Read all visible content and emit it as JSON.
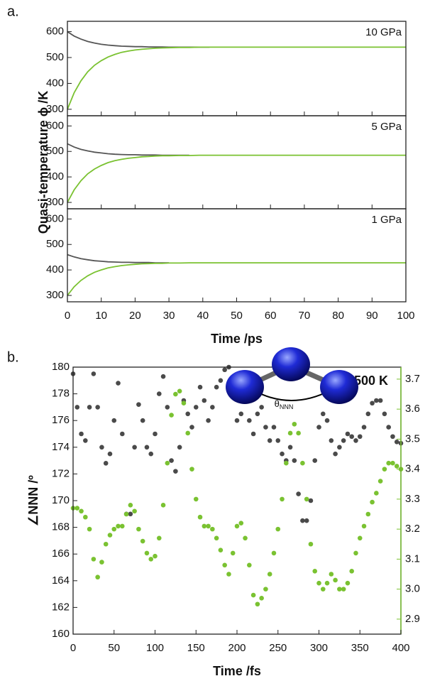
{
  "chart_data": [
    {
      "type": "line",
      "panel_label": "a.",
      "annotation": "10 GPa",
      "x": [
        0,
        2,
        4,
        6,
        8,
        10,
        12,
        14,
        16,
        18,
        20,
        22,
        24,
        26,
        28,
        30,
        33,
        36,
        39,
        42,
        50,
        60,
        70,
        80,
        90,
        100
      ],
      "series": [
        {
          "name": "gray",
          "color": "#555555",
          "values": [
            600,
            583,
            571,
            562,
            556,
            551,
            548,
            546,
            544,
            543,
            542,
            542,
            541,
            541,
            541,
            540,
            540,
            540,
            540,
            540,
            null,
            null,
            null,
            null,
            null,
            null
          ]
        },
        {
          "name": "green",
          "color": "#7ac231",
          "values": [
            300,
            364,
            410,
            445,
            470,
            488,
            502,
            512,
            520,
            525,
            529,
            532,
            534,
            536,
            537,
            538,
            539,
            539,
            540,
            540,
            540,
            540,
            540,
            540,
            540,
            540
          ]
        }
      ],
      "xlim": [
        0,
        100
      ],
      "xticks": [
        0,
        10,
        20,
        30,
        40,
        50,
        60,
        70,
        80,
        90,
        100
      ],
      "ylim": [
        275,
        640
      ],
      "yticks": [
        300,
        400,
        500,
        600
      ]
    },
    {
      "type": "line",
      "annotation": "5 GPa",
      "ylabel": "Quasi-temperature ϕ /K",
      "x": [
        0,
        2,
        4,
        6,
        8,
        10,
        12,
        14,
        16,
        18,
        20,
        22,
        24,
        26,
        28,
        30,
        33,
        36,
        39,
        42,
        50,
        60,
        70,
        80,
        90,
        100
      ],
      "series": [
        {
          "name": "gray",
          "color": "#555555",
          "values": [
            530,
            517,
            508,
            502,
            497,
            494,
            491,
            489,
            488,
            487,
            487,
            486,
            486,
            486,
            485,
            485,
            485,
            485,
            null,
            null,
            null,
            null,
            null,
            null,
            null,
            null
          ]
        },
        {
          "name": "green",
          "color": "#7ac231",
          "values": [
            300,
            349,
            385,
            412,
            431,
            445,
            456,
            464,
            469,
            473,
            476,
            479,
            480,
            482,
            483,
            483,
            484,
            484,
            485,
            485,
            485,
            485,
            485,
            485,
            485,
            485
          ]
        }
      ],
      "xlim": [
        0,
        100
      ],
      "xticks": [
        0,
        10,
        20,
        30,
        40,
        50,
        60,
        70,
        80,
        90,
        100
      ],
      "ylim": [
        275,
        640
      ],
      "yticks": [
        300,
        400,
        500,
        600
      ]
    },
    {
      "type": "line",
      "annotation": "1 GPa",
      "xlabel": "Time /ps",
      "x": [
        0,
        2,
        4,
        6,
        8,
        10,
        12,
        14,
        16,
        18,
        20,
        22,
        24,
        26,
        28,
        30,
        33,
        36,
        39,
        42,
        50,
        60,
        70,
        80,
        90,
        100
      ],
      "series": [
        {
          "name": "gray",
          "color": "#555555",
          "values": [
            460,
            451,
            444,
            440,
            436,
            434,
            432,
            431,
            430,
            430,
            429,
            429,
            429,
            428,
            428,
            428,
            null,
            null,
            null,
            null,
            null,
            null,
            null,
            null,
            null,
            null
          ]
        },
        {
          "name": "green",
          "color": "#7ac231",
          "values": [
            300,
            334,
            359,
            377,
            391,
            400,
            408,
            413,
            417,
            420,
            422,
            424,
            425,
            426,
            426,
            427,
            427,
            428,
            428,
            428,
            428,
            428,
            428,
            428,
            428,
            428
          ]
        }
      ],
      "xlim": [
        0,
        100
      ],
      "xticks": [
        0,
        10,
        20,
        30,
        40,
        50,
        60,
        70,
        80,
        90,
        100
      ],
      "ylim": [
        275,
        640
      ],
      "yticks": [
        300,
        400,
        500,
        600
      ],
      "show_xtick_labels": true
    },
    {
      "type": "scatter",
      "panel_label": "b.",
      "annotation": "500 K",
      "molecule_label": {
        "text": "θ",
        "subscript": "NNN"
      },
      "xlabel": "Time /fs",
      "ylabel": "∠NNN /º",
      "x": [
        0,
        5,
        10,
        15,
        20,
        25,
        30,
        35,
        40,
        45,
        50,
        55,
        60,
        65,
        70,
        75,
        80,
        85,
        90,
        95,
        100,
        105,
        110,
        115,
        120,
        125,
        130,
        135,
        140,
        145,
        150,
        155,
        160,
        165,
        170,
        175,
        180,
        185,
        190,
        195,
        200,
        205,
        210,
        215,
        220,
        225,
        230,
        235,
        240,
        245,
        250,
        255,
        260,
        265,
        270,
        275,
        280,
        285,
        290,
        295,
        300,
        305,
        310,
        315,
        320,
        325,
        330,
        335,
        340,
        345,
        350,
        355,
        360,
        365,
        370,
        375,
        380,
        385,
        390,
        395,
        400
      ],
      "series": [
        {
          "name": "angle",
          "color": "#4a4a4a",
          "values": [
            179.5,
            177,
            175,
            174.5,
            177,
            179.5,
            177,
            174,
            172.8,
            173.5,
            176,
            178.8,
            175,
            169,
            169,
            174,
            177.2,
            176,
            174,
            173.5,
            175,
            178,
            179.3,
            177,
            173,
            172.2,
            174,
            177.5,
            176.5,
            175.5,
            177,
            178.5,
            177.5,
            176,
            177,
            178.5,
            179,
            179.8,
            180,
            178,
            176,
            176.5,
            177.5,
            176,
            175,
            176.5,
            177,
            175.5,
            174.5,
            175.5,
            174.5,
            173.5,
            173,
            174,
            173,
            170.5,
            168.5,
            168.5,
            170,
            173,
            175.5,
            176.5,
            176,
            174.5,
            173.5,
            174,
            174.5,
            175,
            174.8,
            174.5,
            174.8,
            175.5,
            176.5,
            177.3,
            177.5,
            177.5,
            176.5,
            175.5,
            174.8,
            174.4,
            174.3
          ]
        },
        {
          "name": "distance",
          "color": "#7ac231",
          "axis": "y2",
          "values": [
            3.27,
            3.27,
            3.26,
            3.24,
            3.2,
            3.1,
            3.04,
            3.09,
            3.15,
            3.18,
            3.2,
            3.21,
            3.21,
            3.25,
            3.28,
            3.26,
            3.2,
            3.16,
            3.12,
            3.1,
            3.11,
            3.17,
            3.28,
            3.42,
            3.58,
            3.65,
            3.66,
            3.62,
            3.52,
            3.4,
            3.3,
            3.24,
            3.21,
            3.21,
            3.2,
            3.17,
            3.13,
            3.08,
            3.05,
            3.12,
            3.21,
            3.22,
            3.17,
            3.08,
            2.98,
            2.95,
            2.97,
            3.0,
            3.05,
            3.12,
            3.2,
            3.3,
            3.42,
            3.52,
            3.55,
            3.52,
            3.42,
            3.3,
            3.15,
            3.06,
            3.02,
            3.0,
            3.02,
            3.05,
            3.03,
            3.0,
            3.0,
            3.02,
            3.06,
            3.12,
            3.17,
            3.21,
            3.25,
            3.29,
            3.32,
            3.36,
            3.4,
            3.42,
            3.42,
            3.41,
            3.4
          ]
        }
      ],
      "xlim": [
        0,
        400
      ],
      "xticks": [
        0,
        50,
        100,
        150,
        200,
        250,
        300,
        350,
        400
      ],
      "ylim": [
        160,
        180
      ],
      "yticks": [
        160,
        162,
        164,
        166,
        168,
        170,
        172,
        174,
        176,
        178,
        180
      ],
      "y2lim": [
        2.85,
        3.74
      ],
      "y2ticks": [
        2.9,
        {
          "value": 3,
          "label": "3.0"
        },
        3.1,
        3.2,
        3.3,
        3.4,
        3.5,
        3.6,
        3.7
      ],
      "y2color": "#7ac231",
      "show_xtick_labels": true
    }
  ]
}
